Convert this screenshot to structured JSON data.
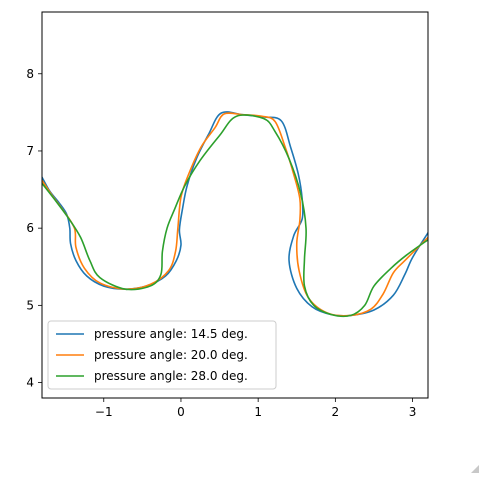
{
  "chart_data": {
    "type": "line",
    "title": "",
    "xlabel": "",
    "ylabel": "",
    "xlim": [
      -1.8,
      3.2
    ],
    "ylim": [
      3.8,
      8.8
    ],
    "xticks": [
      -1,
      0,
      1,
      2,
      3
    ],
    "yticks": [
      4,
      5,
      6,
      7,
      8
    ],
    "xtick_labels": [
      "−1",
      "0",
      "1",
      "2",
      "3"
    ],
    "ytick_labels": [
      "4",
      "5",
      "6",
      "7",
      "8"
    ],
    "grid": false,
    "legend_position": "lower-left",
    "series": [
      {
        "name": "pressure angle: 14.5 deg.",
        "color": "#1f77b4",
        "points": [
          [
            -1.8,
            6.66
          ],
          [
            -1.7,
            6.48
          ],
          [
            -1.58,
            6.33
          ],
          [
            -1.48,
            6.18
          ],
          [
            -1.44,
            6.0
          ],
          [
            -1.43,
            5.8
          ],
          [
            -1.36,
            5.58
          ],
          [
            -1.22,
            5.38
          ],
          [
            -1.0,
            5.25
          ],
          [
            -0.72,
            5.21
          ],
          [
            -0.45,
            5.25
          ],
          [
            -0.2,
            5.38
          ],
          [
            -0.06,
            5.58
          ],
          [
            0.0,
            5.78
          ],
          [
            -0.02,
            5.98
          ],
          [
            0.02,
            6.25
          ],
          [
            0.08,
            6.55
          ],
          [
            0.2,
            6.9
          ],
          [
            0.36,
            7.22
          ],
          [
            0.52,
            7.49
          ],
          [
            0.8,
            7.47
          ],
          [
            1.07,
            7.44
          ],
          [
            1.3,
            7.39
          ],
          [
            1.42,
            7.05
          ],
          [
            1.52,
            6.7
          ],
          [
            1.57,
            6.38
          ],
          [
            1.57,
            6.12
          ],
          [
            1.46,
            5.9
          ],
          [
            1.4,
            5.58
          ],
          [
            1.5,
            5.22
          ],
          [
            1.7,
            4.98
          ],
          [
            1.95,
            4.88
          ],
          [
            2.2,
            4.87
          ],
          [
            2.5,
            4.94
          ],
          [
            2.75,
            5.13
          ],
          [
            2.9,
            5.4
          ],
          [
            3.0,
            5.62
          ],
          [
            3.2,
            5.94
          ]
        ]
      },
      {
        "name": "pressure angle: 20.0 deg.",
        "color": "#ff7f0e",
        "points": [
          [
            -1.8,
            6.62
          ],
          [
            -1.68,
            6.44
          ],
          [
            -1.54,
            6.25
          ],
          [
            -1.38,
            6.0
          ],
          [
            -1.36,
            5.75
          ],
          [
            -1.25,
            5.48
          ],
          [
            -1.05,
            5.29
          ],
          [
            -0.72,
            5.21
          ],
          [
            -0.4,
            5.27
          ],
          [
            -0.16,
            5.45
          ],
          [
            -0.07,
            5.7
          ],
          [
            -0.04,
            6.0
          ],
          [
            0.0,
            6.4
          ],
          [
            0.1,
            6.7
          ],
          [
            0.26,
            7.05
          ],
          [
            0.44,
            7.3
          ],
          [
            0.56,
            7.48
          ],
          [
            0.8,
            7.47
          ],
          [
            1.05,
            7.45
          ],
          [
            1.22,
            7.38
          ],
          [
            1.35,
            7.05
          ],
          [
            1.46,
            6.7
          ],
          [
            1.54,
            6.38
          ],
          [
            1.54,
            6.1
          ],
          [
            1.5,
            5.8
          ],
          [
            1.53,
            5.45
          ],
          [
            1.65,
            5.1
          ],
          [
            1.9,
            4.9
          ],
          [
            2.2,
            4.87
          ],
          [
            2.46,
            4.95
          ],
          [
            2.62,
            5.15
          ],
          [
            2.75,
            5.42
          ],
          [
            2.9,
            5.58
          ],
          [
            3.2,
            5.88
          ]
        ]
      },
      {
        "name": "pressure angle: 28.0 deg.",
        "color": "#2ca02c",
        "points": [
          [
            -1.8,
            6.58
          ],
          [
            -1.62,
            6.35
          ],
          [
            -1.45,
            6.12
          ],
          [
            -1.3,
            5.88
          ],
          [
            -1.18,
            5.58
          ],
          [
            -1.05,
            5.36
          ],
          [
            -0.72,
            5.21
          ],
          [
            -0.4,
            5.25
          ],
          [
            -0.26,
            5.4
          ],
          [
            -0.24,
            5.7
          ],
          [
            -0.18,
            6.0
          ],
          [
            -0.08,
            6.25
          ],
          [
            0.05,
            6.55
          ],
          [
            0.25,
            6.88
          ],
          [
            0.5,
            7.2
          ],
          [
            0.72,
            7.45
          ],
          [
            1.07,
            7.42
          ],
          [
            1.22,
            7.25
          ],
          [
            1.4,
            6.9
          ],
          [
            1.55,
            6.45
          ],
          [
            1.62,
            6.0
          ],
          [
            1.6,
            5.6
          ],
          [
            1.6,
            5.25
          ],
          [
            1.72,
            5.0
          ],
          [
            1.95,
            4.88
          ],
          [
            2.2,
            4.87
          ],
          [
            2.38,
            5.0
          ],
          [
            2.5,
            5.25
          ],
          [
            2.72,
            5.48
          ],
          [
            2.92,
            5.65
          ],
          [
            3.2,
            5.85
          ]
        ]
      }
    ]
  }
}
